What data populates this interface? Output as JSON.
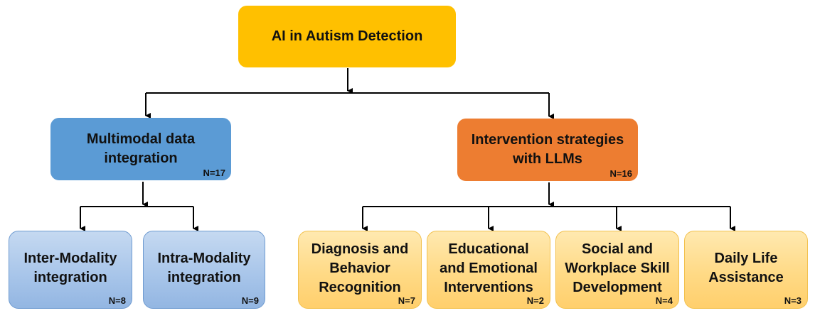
{
  "colors": {
    "root": "#FFC000",
    "multimodal": "#5B9BD5",
    "intervention": "#ED7D31",
    "leaf_blue": "#A9C6EA",
    "leaf_yellow": "#FFDA86",
    "connector": "#000000"
  },
  "root": {
    "label": "AI in Autism Detection"
  },
  "branches": {
    "multimodal": {
      "label": "Multimodal data\nintegration",
      "count": "N=17",
      "children": [
        {
          "label": "Inter-Modality\nintegration",
          "count": "N=8"
        },
        {
          "label": "Intra-Modality\nintegration",
          "count": "N=9"
        }
      ]
    },
    "intervention": {
      "label": "Intervention strategies\nwith LLMs",
      "count": "N=16",
      "children": [
        {
          "label": "Diagnosis and\nBehavior\nRecognition",
          "count": "N=7"
        },
        {
          "label": "Educational\nand Emotional\nInterventions",
          "count": "N=2"
        },
        {
          "label": "Social and\nWorkplace Skill\nDevelopment",
          "count": "N=4"
        },
        {
          "label": "Daily Life\nAssistance",
          "count": "N=3"
        }
      ]
    }
  }
}
